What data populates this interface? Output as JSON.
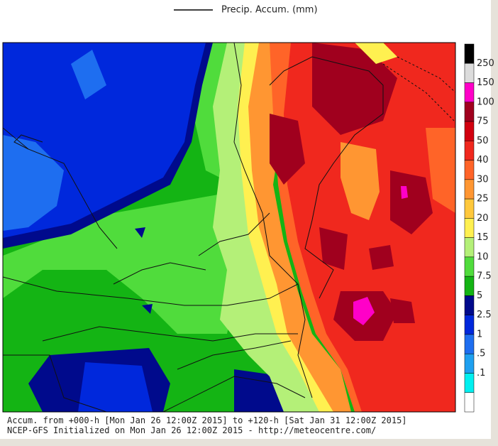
{
  "header": {
    "legend_label": "Precip. Accum. (mm)"
  },
  "colorbar": {
    "colors": [
      "#000000",
      "#dcdcdc",
      "#ff00c8",
      "#a0001e",
      "#d2000f",
      "#f0281e",
      "#ff6428",
      "#ff9632",
      "#ffc83c",
      "#fff050",
      "#b4f078",
      "#50dc3c",
      "#14b414",
      "#000a8c",
      "#0028dc",
      "#1e6ef0",
      "#1ea0f0",
      "#00f0f0",
      "#ffffff"
    ],
    "labels": [
      "250",
      "150",
      "100",
      "75",
      "50",
      "40",
      "30",
      "25",
      "20",
      "15",
      "10",
      "7.5",
      "5",
      "2.5",
      "1",
      ".5",
      ".1"
    ]
  },
  "footer": {
    "lines": [
      "Accum. from +000-h [Mon Jan 26 12:00Z 2015] to +120-h [Sat Jan 31 12:00Z 2015]",
      "NCEP-GFS Initialized on Mon Jan 26 12:00Z 2015 - http://meteocentre.com/"
    ]
  }
}
